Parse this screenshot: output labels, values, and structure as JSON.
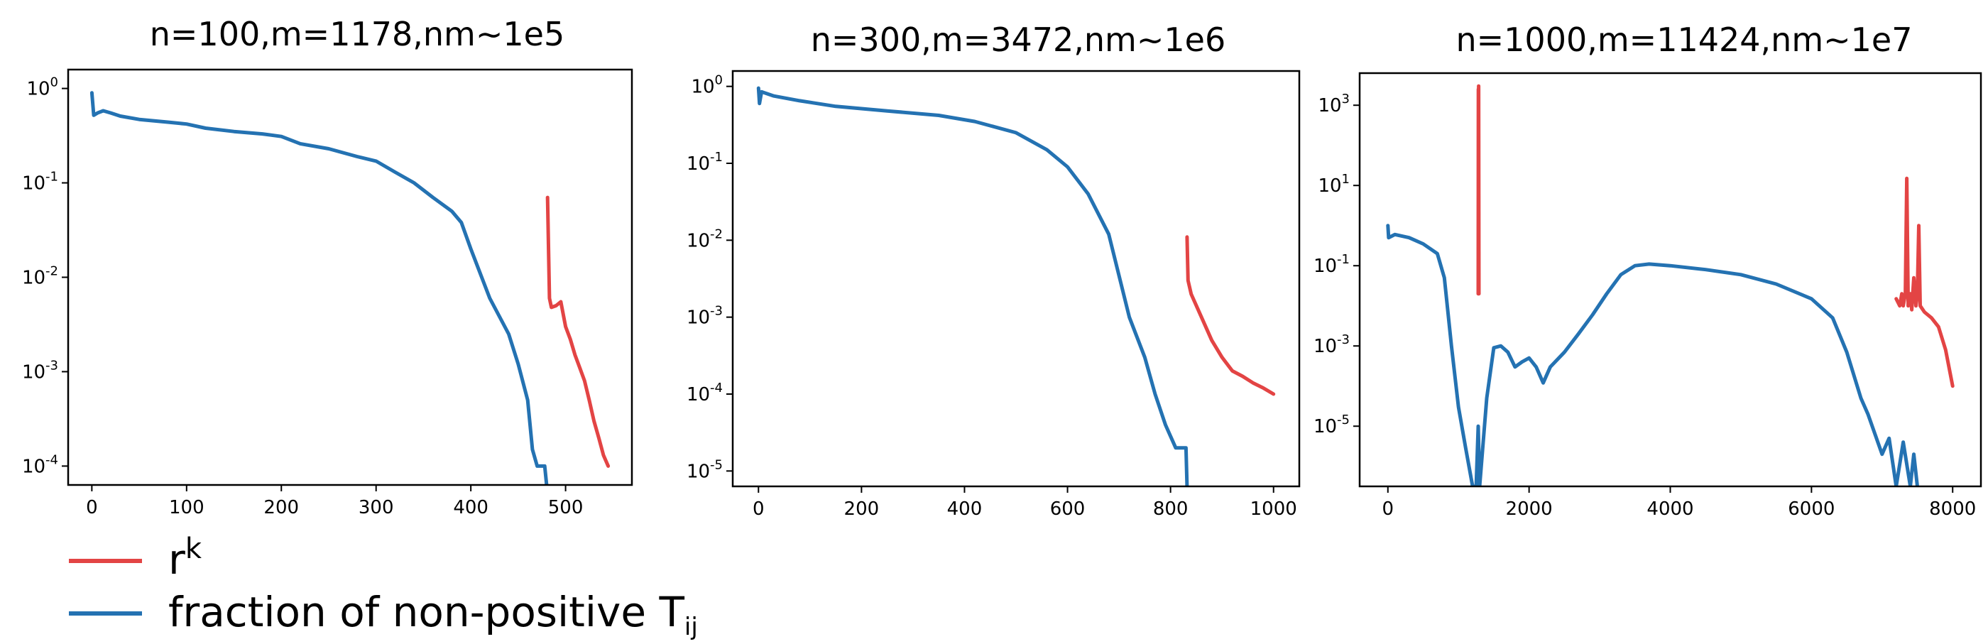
{
  "colors": {
    "red": "#e34444",
    "blue": "#2472b2"
  },
  "legend": [
    {
      "label": "r",
      "sup": "k",
      "color": "#e34444"
    },
    {
      "label": "fraction of non-positive T",
      "sub": "ij",
      "color": "#2472b2"
    }
  ],
  "chart_data": [
    {
      "type": "line",
      "title": "n=100,m=1178,nm~1e5",
      "yscale": "log",
      "xlim": [
        -25,
        570
      ],
      "ylim_log10": [
        -4.2,
        0.2
      ],
      "xticks": [
        0,
        100,
        200,
        300,
        400,
        500
      ],
      "yticks_exp": [
        0,
        -1,
        -2,
        -3,
        -4
      ],
      "series": [
        {
          "color": "blue",
          "points": [
            [
              0,
              0.9
            ],
            [
              2,
              0.52
            ],
            [
              6,
              0.55
            ],
            [
              12,
              0.58
            ],
            [
              20,
              0.55
            ],
            [
              30,
              0.51
            ],
            [
              50,
              0.47
            ],
            [
              80,
              0.44
            ],
            [
              100,
              0.42
            ],
            [
              120,
              0.38
            ],
            [
              150,
              0.35
            ],
            [
              180,
              0.33
            ],
            [
              200,
              0.31
            ],
            [
              220,
              0.26
            ],
            [
              250,
              0.23
            ],
            [
              280,
              0.19
            ],
            [
              300,
              0.17
            ],
            [
              320,
              0.13
            ],
            [
              340,
              0.1
            ],
            [
              360,
              0.07
            ],
            [
              380,
              0.05
            ],
            [
              390,
              0.038
            ],
            [
              400,
              0.02
            ],
            [
              420,
              0.006
            ],
            [
              440,
              0.0025
            ],
            [
              450,
              0.0012
            ],
            [
              460,
              0.0005
            ],
            [
              465,
              0.00015
            ],
            [
              470,
              0.0001
            ],
            [
              478,
              0.0001
            ],
            [
              480,
              5e-05
            ]
          ]
        },
        {
          "color": "red",
          "points": [
            [
              481,
              0.07
            ],
            [
              483,
              0.006
            ],
            [
              485,
              0.0048
            ],
            [
              490,
              0.005
            ],
            [
              495,
              0.0055
            ],
            [
              500,
              0.003
            ],
            [
              505,
              0.0022
            ],
            [
              510,
              0.0015
            ],
            [
              515,
              0.0011
            ],
            [
              520,
              0.0008
            ],
            [
              525,
              0.0005
            ],
            [
              530,
              0.0003
            ],
            [
              535,
              0.0002
            ],
            [
              540,
              0.00013
            ],
            [
              545,
              0.0001
            ]
          ]
        }
      ]
    },
    {
      "type": "line",
      "title": "n=300,m=3472,nm~1e6",
      "yscale": "log",
      "xlim": [
        -50,
        1050
      ],
      "ylim_log10": [
        -5.2,
        0.2
      ],
      "xticks": [
        0,
        200,
        400,
        600,
        800,
        1000
      ],
      "yticks_exp": [
        0,
        -1,
        -2,
        -3,
        -4,
        -5
      ],
      "series": [
        {
          "color": "blue",
          "points": [
            [
              0,
              0.95
            ],
            [
              2,
              0.6
            ],
            [
              6,
              0.85
            ],
            [
              30,
              0.75
            ],
            [
              80,
              0.65
            ],
            [
              150,
              0.55
            ],
            [
              250,
              0.48
            ],
            [
              350,
              0.42
            ],
            [
              420,
              0.35
            ],
            [
              500,
              0.25
            ],
            [
              560,
              0.15
            ],
            [
              600,
              0.09
            ],
            [
              640,
              0.04
            ],
            [
              680,
              0.012
            ],
            [
              720,
              0.001
            ],
            [
              750,
              0.0003
            ],
            [
              770,
              0.0001
            ],
            [
              790,
              4e-05
            ],
            [
              810,
              2e-05
            ],
            [
              830,
              2e-05
            ],
            [
              832,
              6e-06
            ]
          ]
        },
        {
          "color": "red",
          "points": [
            [
              832,
              0.011
            ],
            [
              834,
              0.003
            ],
            [
              840,
              0.002
            ],
            [
              860,
              0.001
            ],
            [
              880,
              0.0005
            ],
            [
              900,
              0.0003
            ],
            [
              920,
              0.0002
            ],
            [
              940,
              0.00017
            ],
            [
              960,
              0.00014
            ],
            [
              980,
              0.00012
            ],
            [
              1000,
              0.0001
            ]
          ]
        }
      ]
    },
    {
      "type": "line",
      "title": "n=1000,m=11424,nm~1e7",
      "yscale": "log",
      "xlim": [
        -400,
        8400
      ],
      "ylim_log10": [
        -6.5,
        3.8
      ],
      "xticks": [
        0,
        2000,
        4000,
        6000,
        8000
      ],
      "yticks_exp": [
        3,
        1,
        -1,
        -3,
        -5
      ],
      "series": [
        {
          "color": "blue",
          "points": [
            [
              0,
              1
            ],
            [
              10,
              0.5
            ],
            [
              100,
              0.6
            ],
            [
              300,
              0.5
            ],
            [
              500,
              0.35
            ],
            [
              700,
              0.2
            ],
            [
              800,
              0.05
            ],
            [
              900,
              0.001
            ],
            [
              1000,
              3e-05
            ],
            [
              1100,
              3e-06
            ],
            [
              1200,
              3e-07
            ],
            [
              1250,
              1e-07
            ],
            [
              1280,
              1e-05
            ],
            [
              1300,
              2e-07
            ],
            [
              1400,
              5e-05
            ],
            [
              1500,
              0.0009
            ],
            [
              1600,
              0.001
            ],
            [
              1700,
              0.0007
            ],
            [
              1800,
              0.0003
            ],
            [
              1900,
              0.0004
            ],
            [
              2000,
              0.0005
            ],
            [
              2100,
              0.0003
            ],
            [
              2200,
              0.00012
            ],
            [
              2300,
              0.0003
            ],
            [
              2500,
              0.0007
            ],
            [
              2700,
              0.002
            ],
            [
              2900,
              0.006
            ],
            [
              3100,
              0.02
            ],
            [
              3300,
              0.06
            ],
            [
              3500,
              0.1
            ],
            [
              3700,
              0.11
            ],
            [
              4000,
              0.1
            ],
            [
              4500,
              0.08
            ],
            [
              5000,
              0.06
            ],
            [
              5500,
              0.035
            ],
            [
              6000,
              0.015
            ],
            [
              6300,
              0.005
            ],
            [
              6500,
              0.0007
            ],
            [
              6700,
              5e-05
            ],
            [
              6800,
              2e-05
            ],
            [
              7000,
              2e-06
            ],
            [
              7100,
              5e-06
            ],
            [
              7200,
              1e-07
            ],
            [
              7300,
              4e-06
            ],
            [
              7400,
              3e-07
            ],
            [
              7450,
              2e-06
            ],
            [
              7500,
              1e-07
            ]
          ]
        },
        {
          "color": "red",
          "points": [
            [
              1280,
              0.02
            ],
            [
              1282,
              2500
            ],
            [
              1284,
              0.02
            ],
            [
              1286,
              3000
            ],
            [
              1290,
              0.02
            ]
          ]
        },
        {
          "color": "red",
          "points": [
            [
              7200,
              0.015
            ],
            [
              7250,
              0.01
            ],
            [
              7280,
              0.02
            ],
            [
              7300,
              0.01
            ],
            [
              7330,
              0.02
            ],
            [
              7350,
              15
            ],
            [
              7370,
              0.01
            ],
            [
              7400,
              0.02
            ],
            [
              7420,
              0.008
            ],
            [
              7450,
              0.05
            ],
            [
              7480,
              0.01
            ],
            [
              7500,
              0.02
            ],
            [
              7520,
              1
            ],
            [
              7540,
              0.01
            ],
            [
              7600,
              0.007
            ],
            [
              7700,
              0.005
            ],
            [
              7800,
              0.003
            ],
            [
              7900,
              0.0008
            ],
            [
              8000,
              0.0001
            ]
          ]
        }
      ]
    }
  ]
}
